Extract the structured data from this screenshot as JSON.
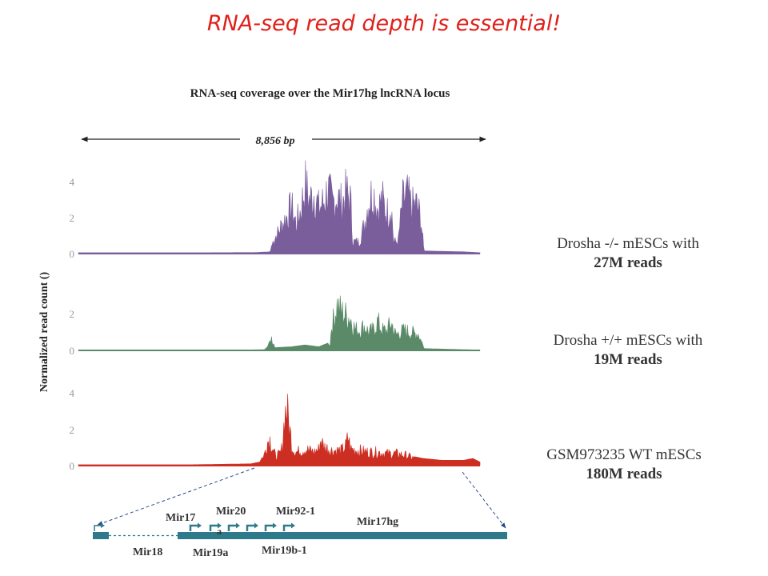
{
  "slide_title": "RNA-seq read depth is essential!",
  "chart_data": {
    "type": "area",
    "title": "RNA-seq coverage over the Mir17hg lncRNA locus",
    "span_label": "8,856 bp",
    "ylabel": "Normalized read count ()",
    "x_range": [
      0,
      8856
    ],
    "tracks": [
      {
        "label_line1": "Drosha -/- mESCs with",
        "label_line2": "27M reads",
        "color": "#7a5e9c",
        "yticks": [
          "4",
          "2",
          "0"
        ],
        "ylim": [
          0,
          4.5
        ],
        "profile": [
          [
            0,
            0.05
          ],
          [
            1500,
            0.05
          ],
          [
            2800,
            0.05
          ],
          [
            3900,
            0.06
          ],
          [
            4230,
            0.1
          ],
          [
            4300,
            0.9
          ],
          [
            4400,
            1.4
          ],
          [
            4500,
            2.0
          ],
          [
            4600,
            2.5
          ],
          [
            4700,
            3.1
          ],
          [
            4800,
            2.0
          ],
          [
            4900,
            2.9
          ],
          [
            5000,
            4.6
          ],
          [
            5100,
            3.5
          ],
          [
            5200,
            4.1
          ],
          [
            5300,
            3.0
          ],
          [
            5400,
            3.4
          ],
          [
            5500,
            4.3
          ],
          [
            5600,
            3.3
          ],
          [
            5700,
            3.9
          ],
          [
            5800,
            3.3
          ],
          [
            5900,
            4.0
          ],
          [
            6000,
            3.6
          ],
          [
            6050,
            0.8
          ],
          [
            6200,
            0.8
          ],
          [
            6300,
            1.9
          ],
          [
            6400,
            3.5
          ],
          [
            6500,
            4.2
          ],
          [
            6600,
            3.0
          ],
          [
            6700,
            3.6
          ],
          [
            6800,
            2.7
          ],
          [
            6900,
            3.3
          ],
          [
            6950,
            0.8
          ],
          [
            7050,
            0.8
          ],
          [
            7150,
            3.5
          ],
          [
            7250,
            3.9
          ],
          [
            7350,
            3.1
          ],
          [
            7450,
            3.3
          ],
          [
            7550,
            2.4
          ],
          [
            7620,
            0.15
          ],
          [
            8500,
            0.1
          ],
          [
            8856,
            0.05
          ]
        ]
      },
      {
        "label_line1": "Drosha +/+ mESCs with",
        "label_line2": "19M reads",
        "color": "#5a8a68",
        "yticks": [
          "2",
          "0"
        ],
        "ylim": [
          0,
          3
        ],
        "profile": [
          [
            0,
            0.02
          ],
          [
            3800,
            0.03
          ],
          [
            4100,
            0.04
          ],
          [
            4170,
            0.2
          ],
          [
            4260,
            0.8
          ],
          [
            4330,
            0.15
          ],
          [
            4700,
            0.2
          ],
          [
            5000,
            0.3
          ],
          [
            5300,
            0.2
          ],
          [
            5500,
            0.4
          ],
          [
            5550,
            0.2
          ],
          [
            5580,
            1.6
          ],
          [
            5650,
            2.2
          ],
          [
            5700,
            3.0
          ],
          [
            5800,
            2.5
          ],
          [
            5900,
            2.3
          ],
          [
            6000,
            2.1
          ],
          [
            6100,
            1.4
          ],
          [
            6200,
            1.3
          ],
          [
            6300,
            1.6
          ],
          [
            6400,
            1.2
          ],
          [
            6500,
            1.3
          ],
          [
            6600,
            1.9
          ],
          [
            6700,
            1.3
          ],
          [
            6800,
            1.3
          ],
          [
            6900,
            1.8
          ],
          [
            7000,
            1.0
          ],
          [
            7100,
            1.2
          ],
          [
            7200,
            1.3
          ],
          [
            7300,
            1.2
          ],
          [
            7400,
            1.1
          ],
          [
            7500,
            1.1
          ],
          [
            7620,
            0.1
          ],
          [
            8856,
            0.02
          ]
        ]
      },
      {
        "label_line1": "GSM973235 WT mESCs",
        "label_line2": "180M reads",
        "color": "#cc2e22",
        "yticks": [
          "4",
          "2",
          "0"
        ],
        "ylim": [
          0,
          4.5
        ],
        "profile": [
          [
            0,
            0.05
          ],
          [
            2500,
            0.05
          ],
          [
            3800,
            0.1
          ],
          [
            4000,
            0.2
          ],
          [
            4100,
            0.7
          ],
          [
            4150,
            1.5
          ],
          [
            4220,
            1.8
          ],
          [
            4300,
            1.0
          ],
          [
            4350,
            0.6
          ],
          [
            4450,
            0.8
          ],
          [
            4500,
            1.3
          ],
          [
            4550,
            3.5
          ],
          [
            4600,
            3.8
          ],
          [
            4650,
            2.6
          ],
          [
            4720,
            1.2
          ],
          [
            4800,
            0.9
          ],
          [
            5000,
            1.1
          ],
          [
            5200,
            0.9
          ],
          [
            5300,
            1.1
          ],
          [
            5350,
            1.8
          ],
          [
            5400,
            1.3
          ],
          [
            5600,
            1.0
          ],
          [
            5800,
            1.0
          ],
          [
            5900,
            1.3
          ],
          [
            5950,
            2.0
          ],
          [
            6000,
            1.1
          ],
          [
            6200,
            1.0
          ],
          [
            6400,
            0.9
          ],
          [
            6600,
            0.9
          ],
          [
            6800,
            0.8
          ],
          [
            7000,
            0.8
          ],
          [
            7200,
            0.7
          ],
          [
            7400,
            0.5
          ],
          [
            7600,
            0.4
          ],
          [
            8000,
            0.3
          ],
          [
            8500,
            0.3
          ],
          [
            8700,
            0.4
          ],
          [
            8856,
            0.2
          ]
        ]
      }
    ]
  },
  "gene_model": {
    "color": "#2e7a8a",
    "labels": {
      "mir17": "Mir17",
      "mir17_suffix": "a",
      "mir20": "Mir20",
      "mir92": "Mir92-1",
      "mir17hg": "Mir17hg",
      "mir18": "Mir18",
      "mir19a": "Mir19a",
      "mir19b": "Mir19b-1"
    }
  }
}
